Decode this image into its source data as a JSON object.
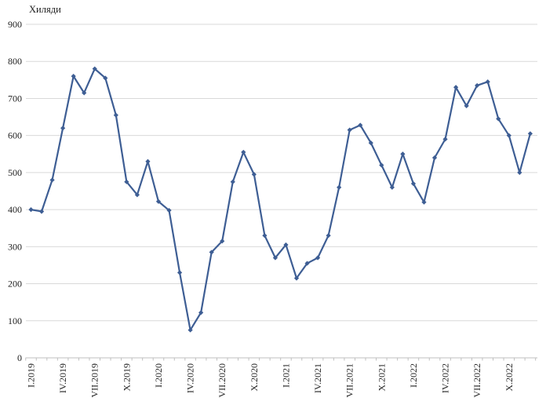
{
  "chart": {
    "axis_title": "Хиляди",
    "colors": {
      "line": "#3E5E94",
      "gridline": "#D9D9D9",
      "axis_line": "#BFBFBF",
      "text": "#1F1F1F",
      "background": "#FFFFFF"
    }
  },
  "chart_data": {
    "type": "line",
    "title": "Хиляди",
    "xlabel": "",
    "ylabel": "Хиляди",
    "ylim": [
      0,
      900
    ],
    "y_ticks": [
      0,
      100,
      200,
      300,
      400,
      500,
      600,
      700,
      800,
      900
    ],
    "grid": true,
    "legend_position": "none",
    "marker": "diamond",
    "x_tick_labels": [
      "I.2019",
      "IV.2019",
      "VII.2019",
      "X.2019",
      "I.2020",
      "IV.2020",
      "VII.2020",
      "X.2020",
      "I.2021",
      "IV.2021",
      "VII.2021",
      "X.2021",
      "I.2022",
      "IV.2022",
      "VII.2022",
      "X.2022"
    ],
    "categories": [
      "I.2019",
      "II.2019",
      "III.2019",
      "IV.2019",
      "V.2019",
      "VI.2019",
      "VII.2019",
      "VIII.2019",
      "IX.2019",
      "X.2019",
      "XI.2019",
      "XII.2019",
      "I.2020",
      "II.2020",
      "III.2020",
      "IV.2020",
      "V.2020",
      "VI.2020",
      "VII.2020",
      "VIII.2020",
      "IX.2020",
      "X.2020",
      "XI.2020",
      "XII.2020",
      "I.2021",
      "II.2021",
      "III.2021",
      "IV.2021",
      "V.2021",
      "VI.2021",
      "VII.2021",
      "VIII.2021",
      "IX.2021",
      "X.2021",
      "XI.2021",
      "XII.2021",
      "I.2022",
      "II.2022",
      "III.2022",
      "IV.2022",
      "V.2022",
      "VI.2022",
      "VII.2022",
      "VIII.2022",
      "IX.2022",
      "X.2022",
      "XI.2022",
      "XII.2022"
    ],
    "values": [
      400,
      395,
      480,
      620,
      760,
      715,
      780,
      755,
      655,
      475,
      440,
      530,
      422,
      398,
      230,
      75,
      122,
      285,
      315,
      475,
      555,
      495,
      330,
      270,
      305,
      215,
      255,
      270,
      330,
      460,
      615,
      628,
      580,
      520,
      460,
      550,
      470,
      420,
      540,
      590,
      730,
      680,
      735,
      745,
      645,
      600,
      500,
      605
    ]
  }
}
